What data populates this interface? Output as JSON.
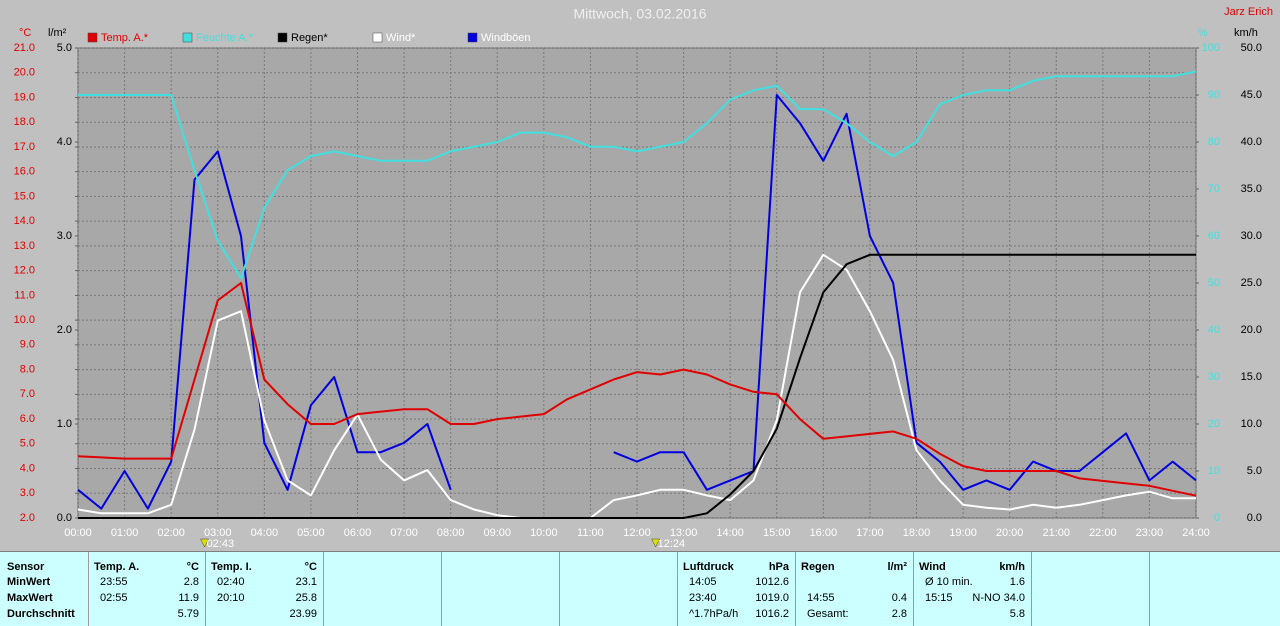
{
  "chart_data": {
    "type": "line",
    "title": "Mittwoch, 03.02.2016",
    "author": "Jarz Erich",
    "ylabel": "°C",
    "y2label": "l/m²",
    "y3label": "%",
    "y4label": "km/h",
    "x": [
      0,
      0.5,
      1,
      1.5,
      2,
      2.5,
      3,
      3.5,
      4,
      4.5,
      5,
      5.5,
      6,
      6.5,
      7,
      7.5,
      8,
      8.5,
      9,
      9.5,
      10,
      10.5,
      11,
      11.5,
      12,
      12.5,
      13,
      13.5,
      14,
      14.5,
      15,
      15.5,
      16,
      16.5,
      17,
      17.5,
      18,
      18.5,
      19,
      19.5,
      20,
      20.5,
      21,
      21.5,
      22,
      22.5,
      23,
      23.5,
      24
    ],
    "xlim": [
      0,
      24
    ],
    "xticks": [
      {
        "value": 0,
        "label": "00:00"
      },
      {
        "value": 1,
        "label": "01:00"
      },
      {
        "value": 2,
        "label": "02:00"
      },
      {
        "value": 3,
        "label": "03:00"
      },
      {
        "value": 4,
        "label": "04:00"
      },
      {
        "value": 5,
        "label": "05:00"
      },
      {
        "value": 6,
        "label": "06:00"
      },
      {
        "value": 7,
        "label": "07:00"
      },
      {
        "value": 8,
        "label": "08:00"
      },
      {
        "value": 9,
        "label": "09:00"
      },
      {
        "value": 10,
        "label": "10:00"
      },
      {
        "value": 11,
        "label": "11:00"
      },
      {
        "value": 12,
        "label": "12:00"
      },
      {
        "value": 13,
        "label": "13:00"
      },
      {
        "value": 14,
        "label": "14:00"
      },
      {
        "value": 15,
        "label": "15:00"
      },
      {
        "value": 16,
        "label": "16:00"
      },
      {
        "value": 17,
        "label": "17:00"
      },
      {
        "value": 18,
        "label": "18:00"
      },
      {
        "value": 19,
        "label": "19:00"
      },
      {
        "value": 20,
        "label": "20:00"
      },
      {
        "value": 21,
        "label": "21:00"
      },
      {
        "value": 22,
        "label": "22:00"
      },
      {
        "value": 23,
        "label": "23:00"
      },
      {
        "value": 24,
        "label": "24:00"
      }
    ],
    "ylim": [
      2,
      21
    ],
    "yticks": [
      {
        "value": 2,
        "label": "2.0"
      },
      {
        "value": 3,
        "label": "3.0"
      },
      {
        "value": 4,
        "label": "4.0"
      },
      {
        "value": 5,
        "label": "5.0"
      },
      {
        "value": 6,
        "label": "6.0"
      },
      {
        "value": 7,
        "label": "7.0"
      },
      {
        "value": 8,
        "label": "8.0"
      },
      {
        "value": 9,
        "label": "9.0"
      },
      {
        "value": 10,
        "label": "10.0"
      },
      {
        "value": 11,
        "label": "11.0"
      },
      {
        "value": 12,
        "label": "12.0"
      },
      {
        "value": 13,
        "label": "13.0"
      },
      {
        "value": 14,
        "label": "14.0"
      },
      {
        "value": 15,
        "label": "15.0"
      },
      {
        "value": 16,
        "label": "16.0"
      },
      {
        "value": 17,
        "label": "17.0"
      },
      {
        "value": 18,
        "label": "18.0"
      },
      {
        "value": 19,
        "label": "19.0"
      },
      {
        "value": 20,
        "label": "20.0"
      },
      {
        "value": 21,
        "label": "21.0"
      }
    ],
    "y2lim": [
      0,
      5
    ],
    "y2ticks": [
      {
        "value": 0,
        "label": "0.0"
      },
      {
        "value": 1,
        "label": "1.0"
      },
      {
        "value": 2,
        "label": "2.0"
      },
      {
        "value": 3,
        "label": "3.0"
      },
      {
        "value": 4,
        "label": "4.0"
      },
      {
        "value": 5,
        "label": "5.0"
      }
    ],
    "y3lim": [
      0,
      100
    ],
    "y3ticks": [
      0,
      10,
      20,
      30,
      40,
      50,
      60,
      70,
      80,
      90,
      100
    ],
    "y4lim": [
      0,
      50
    ],
    "y4ticks": [
      {
        "value": 0,
        "label": "0.0"
      },
      {
        "value": 5,
        "label": "5.0"
      },
      {
        "value": 10,
        "label": "10.0"
      },
      {
        "value": 15,
        "label": "15.0"
      },
      {
        "value": 20,
        "label": "20.0"
      },
      {
        "value": 25,
        "label": "25.0"
      },
      {
        "value": 30,
        "label": "30.0"
      },
      {
        "value": 35,
        "label": "35.0"
      },
      {
        "value": 40,
        "label": "40.0"
      },
      {
        "value": 45,
        "label": "45.0"
      },
      {
        "value": 50,
        "label": "50.0"
      }
    ],
    "grid": true,
    "series": [
      {
        "name": "Temp. A.*",
        "color": "#e00000",
        "label_color": "#e00000",
        "axis": "y",
        "values": [
          4.5,
          4.45,
          4.4,
          4.4,
          4.4,
          7.6,
          10.8,
          11.5,
          7.6,
          6.6,
          5.8,
          5.8,
          6.2,
          6.3,
          6.4,
          6.4,
          5.8,
          5.8,
          6.0,
          6.1,
          6.2,
          6.8,
          7.2,
          7.6,
          7.9,
          7.8,
          8.0,
          7.8,
          7.4,
          7.1,
          7.0,
          6.0,
          5.2,
          5.3,
          5.4,
          5.5,
          5.2,
          4.6,
          4.1,
          3.9,
          3.9,
          3.9,
          3.9,
          3.6,
          3.5,
          3.4,
          3.3,
          3.1,
          2.9
        ]
      },
      {
        "name": "Feuchte A.*",
        "color": "#40e0e0",
        "label_color": "#40e0e0",
        "axis": "y3",
        "values": [
          90,
          90,
          90,
          90,
          90,
          74,
          59,
          51,
          66,
          74,
          77,
          78,
          77,
          76,
          76,
          76,
          78,
          79,
          80,
          82,
          82,
          81,
          79,
          79,
          78,
          79,
          80,
          84,
          89,
          91,
          92,
          87,
          87,
          84,
          80,
          77,
          80,
          88,
          90,
          91,
          91,
          93,
          94,
          94,
          94,
          94,
          94,
          94,
          95
        ]
      },
      {
        "name": "Regen*",
        "color": "#000000",
        "label_color": "#000000",
        "axis": "y2",
        "values": [
          0,
          0,
          0,
          0,
          0,
          0,
          0,
          0,
          0,
          0,
          0,
          0,
          0,
          0,
          0,
          0,
          0,
          0,
          0,
          0,
          0,
          0,
          0,
          0,
          0,
          0,
          0,
          0.05,
          0.25,
          0.5,
          0.95,
          1.7,
          2.4,
          2.7,
          2.8,
          2.8,
          2.8,
          2.8,
          2.8,
          2.8,
          2.8,
          2.8,
          2.8,
          2.8,
          2.8,
          2.8,
          2.8,
          2.8,
          2.8
        ]
      },
      {
        "name": "Wind*",
        "color": "#ffffff",
        "label_color": "#ffffff",
        "axis": "y4",
        "values": [
          0.9,
          0.5,
          0.5,
          0.5,
          1.4,
          9.4,
          21,
          22,
          10.4,
          4.0,
          2.4,
          7.2,
          11,
          6.2,
          4,
          5.1,
          1.9,
          0.9,
          0.3,
          0,
          0,
          0,
          0,
          1.9,
          2.4,
          3,
          3,
          2.4,
          1.9,
          4,
          10.4,
          24,
          28,
          26.4,
          22,
          16.8,
          7.2,
          4,
          1.4,
          1.1,
          0.9,
          1.4,
          1.1,
          1.4,
          1.9,
          2.4,
          2.8,
          2.1,
          2.1
        ]
      },
      {
        "name": "Windböen",
        "color": "#0000e0",
        "label_color": "#ffffff",
        "axis": "y4",
        "values": [
          3,
          1,
          5,
          1,
          6,
          36,
          39,
          30,
          8,
          3,
          12,
          15,
          7,
          7,
          8,
          10,
          3,
          null,
          null,
          null,
          null,
          null,
          null,
          7,
          6,
          7,
          7,
          3,
          4,
          5,
          45,
          42,
          38,
          43,
          30,
          25,
          8,
          6,
          3,
          4,
          3,
          6,
          5,
          5,
          7,
          9,
          4,
          6,
          4
        ]
      }
    ],
    "annotations": [
      {
        "x": 2.717,
        "label": "02:43"
      },
      {
        "x": 12.4,
        "label": "12:24"
      }
    ]
  },
  "table": {
    "row_labels": [
      "Sensor",
      "MinWert",
      "MaxWert",
      "Durchschnitt"
    ],
    "columns": [
      {
        "header": "Temp. A.",
        "unit": "°C",
        "rows": [
          [
            "23:55",
            "2.8"
          ],
          [
            "02:55",
            "11.9"
          ],
          [
            null,
            "5.79"
          ]
        ]
      },
      {
        "header": "Temp. I.",
        "unit": "°C",
        "rows": [
          [
            "02:40",
            "23.1"
          ],
          [
            "20:10",
            "25.8"
          ],
          [
            null,
            "23.99"
          ]
        ]
      },
      {
        "header": "Luftdruck",
        "unit": "hPa",
        "rows": [
          [
            "14:05",
            "1012.6"
          ],
          [
            "23:40",
            "1019.0"
          ],
          [
            "^1.7hPa/h",
            "1016.2"
          ]
        ]
      },
      {
        "header": "Regen",
        "unit": "l/m²",
        "rows": [
          [
            null,
            null
          ],
          [
            "14:55",
            "0.4"
          ],
          [
            "Gesamt:",
            "2.8"
          ]
        ]
      },
      {
        "header": "Wind",
        "unit": "km/h",
        "rows": [
          [
            "Ø 10 min.",
            "1.6"
          ],
          [
            "15:15",
            "N-NO 34.0"
          ],
          [
            null,
            "5.8"
          ]
        ]
      }
    ]
  }
}
